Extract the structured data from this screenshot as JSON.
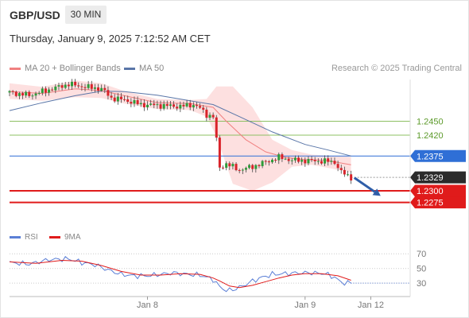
{
  "header": {
    "pair": "GBP/USD",
    "timeframe": "30 MIN",
    "datetime": "Thursday, January 9, 2025 7:12:52 AM CET"
  },
  "legend": {
    "bb_label": "MA 20 + Bollinger Bands",
    "ma50_label": "MA 50",
    "research": "Research © 2025 Trading Central",
    "rsi_label": "RSI",
    "ma9_label": "9MA"
  },
  "colors": {
    "bull": "#2e9c3a",
    "bear": "#d9232a",
    "ma20": "#f08080",
    "band": "#fde0e0",
    "ma50": "#5a76a8",
    "resistance": "#8dc063",
    "pivot": "#2f6fd6",
    "support": "#e01b1b",
    "current": "#2b2b2b",
    "arrow": "#2f5ea8",
    "rsi": "#5b7fd6",
    "rsi_ma": "#e01b1b"
  },
  "chart_data": [
    {
      "type": "candlestick",
      "ylim": [
        1.224,
        1.254
      ],
      "price_levels": [
        {
          "value": 1.245,
          "label": "1.2450",
          "kind": "resistance"
        },
        {
          "value": 1.242,
          "label": "1.2420",
          "kind": "resistance"
        },
        {
          "value": 1.2375,
          "label": "1.2375",
          "kind": "pivot"
        },
        {
          "value": 1.2329,
          "label": "1.2329",
          "kind": "current"
        },
        {
          "value": 1.23,
          "label": "1.2300",
          "kind": "support"
        },
        {
          "value": 1.2275,
          "label": "1.2275",
          "kind": "support"
        }
      ],
      "x_ticks": [
        {
          "index": 42,
          "label": "Jan 8"
        },
        {
          "index": 90,
          "label": "Jan 9"
        },
        {
          "index": 110,
          "label": "Jan 12"
        }
      ],
      "anchors": [
        [
          0,
          1.2512
        ],
        [
          6,
          1.2506
        ],
        [
          12,
          1.2518
        ],
        [
          18,
          1.253
        ],
        [
          23,
          1.2524
        ],
        [
          28,
          1.252
        ],
        [
          31,
          1.25
        ],
        [
          35,
          1.2496
        ],
        [
          40,
          1.2486
        ],
        [
          46,
          1.2484
        ],
        [
          52,
          1.2482
        ],
        [
          56,
          1.2486
        ],
        [
          58,
          1.2478
        ],
        [
          60,
          1.2464
        ],
        [
          62,
          1.246
        ],
        [
          63,
          1.241
        ],
        [
          64,
          1.235
        ],
        [
          66,
          1.2358
        ],
        [
          70,
          1.2345
        ],
        [
          74,
          1.2352
        ],
        [
          78,
          1.2362
        ],
        [
          82,
          1.2372
        ],
        [
          86,
          1.2366
        ],
        [
          90,
          1.2365
        ],
        [
          96,
          1.2364
        ],
        [
          99,
          1.2362
        ],
        [
          101,
          1.234
        ],
        [
          104,
          1.2329
        ]
      ],
      "ma20": [
        [
          0,
          1.2514
        ],
        [
          10,
          1.251
        ],
        [
          20,
          1.252
        ],
        [
          28,
          1.2516
        ],
        [
          35,
          1.2505
        ],
        [
          45,
          1.249
        ],
        [
          55,
          1.2488
        ],
        [
          62,
          1.248
        ],
        [
          66,
          1.245
        ],
        [
          72,
          1.241
        ],
        [
          78,
          1.2384
        ],
        [
          84,
          1.2372
        ],
        [
          90,
          1.2367
        ],
        [
          96,
          1.2366
        ],
        [
          104,
          1.2356
        ]
      ],
      "bb_upper": [
        [
          0,
          1.2532
        ],
        [
          10,
          1.2524
        ],
        [
          20,
          1.2538
        ],
        [
          28,
          1.2532
        ],
        [
          35,
          1.2515
        ],
        [
          45,
          1.2498
        ],
        [
          55,
          1.2496
        ],
        [
          60,
          1.2498
        ],
        [
          63,
          1.2525
        ],
        [
          68,
          1.2525
        ],
        [
          74,
          1.248
        ],
        [
          80,
          1.241
        ],
        [
          86,
          1.2388
        ],
        [
          92,
          1.2378
        ],
        [
          104,
          1.2373
        ]
      ],
      "bb_lower": [
        [
          0,
          1.2498
        ],
        [
          10,
          1.2494
        ],
        [
          20,
          1.2502
        ],
        [
          28,
          1.25
        ],
        [
          35,
          1.2488
        ],
        [
          45,
          1.2476
        ],
        [
          55,
          1.2474
        ],
        [
          60,
          1.246
        ],
        [
          63,
          1.2418
        ],
        [
          68,
          1.2315
        ],
        [
          74,
          1.23
        ],
        [
          80,
          1.2318
        ],
        [
          86,
          1.2352
        ],
        [
          92,
          1.2356
        ],
        [
          104,
          1.234
        ]
      ],
      "ma50": [
        [
          0,
          1.2473
        ],
        [
          10,
          1.249
        ],
        [
          20,
          1.2505
        ],
        [
          28,
          1.2515
        ],
        [
          35,
          1.2514
        ],
        [
          45,
          1.2506
        ],
        [
          55,
          1.2494
        ],
        [
          62,
          1.2486
        ],
        [
          70,
          1.246
        ],
        [
          80,
          1.2427
        ],
        [
          90,
          1.24
        ],
        [
          97,
          1.2388
        ],
        [
          104,
          1.2375
        ]
      ],
      "forecast_arrow": {
        "from": [
          105,
          1.2328
        ],
        "to": [
          113,
          1.2289
        ]
      }
    },
    {
      "type": "line",
      "title": "RSI",
      "ylim": [
        15,
        80
      ],
      "y_ticks": [
        70,
        50,
        30
      ],
      "rsi": [
        [
          0,
          58
        ],
        [
          6,
          56
        ],
        [
          12,
          62
        ],
        [
          18,
          63
        ],
        [
          22,
          58
        ],
        [
          26,
          55
        ],
        [
          30,
          48
        ],
        [
          34,
          42
        ],
        [
          38,
          40
        ],
        [
          42,
          40
        ],
        [
          46,
          42
        ],
        [
          50,
          44
        ],
        [
          54,
          42
        ],
        [
          58,
          41
        ],
        [
          62,
          35
        ],
        [
          64,
          25
        ],
        [
          66,
          20
        ],
        [
          68,
          21
        ],
        [
          71,
          26
        ],
        [
          74,
          33
        ],
        [
          77,
          38
        ],
        [
          80,
          42
        ],
        [
          84,
          43
        ],
        [
          88,
          44
        ],
        [
          92,
          44
        ],
        [
          96,
          43
        ],
        [
          99,
          38
        ],
        [
          101,
          31
        ],
        [
          104,
          30
        ]
      ],
      "rsi_ma": [
        [
          0,
          59
        ],
        [
          8,
          57
        ],
        [
          16,
          61
        ],
        [
          22,
          60
        ],
        [
          28,
          54
        ],
        [
          34,
          46
        ],
        [
          40,
          41
        ],
        [
          46,
          41
        ],
        [
          52,
          43
        ],
        [
          58,
          42
        ],
        [
          62,
          37
        ],
        [
          64,
          33
        ],
        [
          67,
          26
        ],
        [
          70,
          24
        ],
        [
          74,
          27
        ],
        [
          78,
          32
        ],
        [
          82,
          37
        ],
        [
          86,
          41
        ],
        [
          90,
          43
        ],
        [
          95,
          43
        ],
        [
          100,
          40
        ],
        [
          104,
          34
        ]
      ]
    }
  ]
}
